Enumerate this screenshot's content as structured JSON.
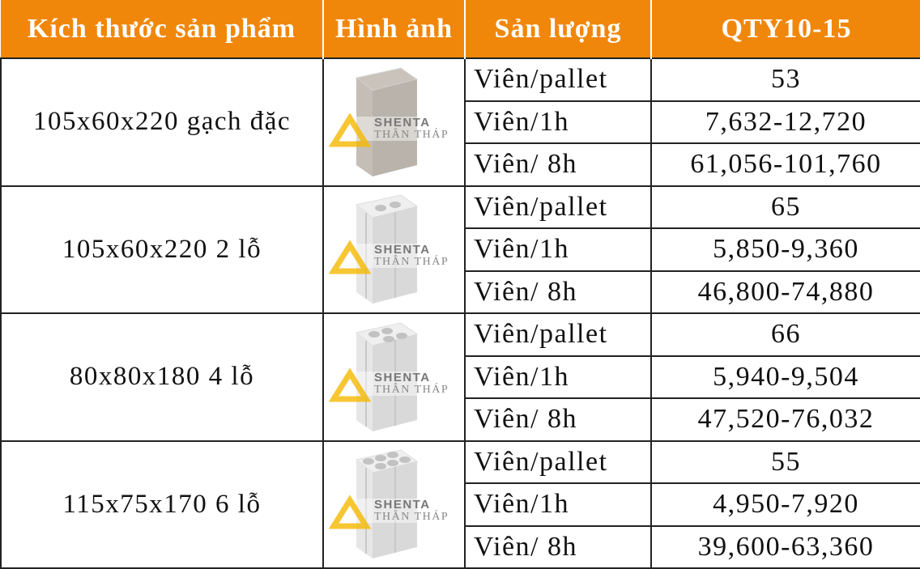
{
  "header": {
    "size": "Kích thước sản phẩm",
    "image": "Hình ảnh",
    "output": "Sản lượng",
    "model": "QTY10-15"
  },
  "watermark": {
    "line1": "SHENTA",
    "line2": "THÂN THÁP"
  },
  "colors": {
    "header_bg": "#f0870a",
    "watermark": "#f5b800"
  },
  "rows": [
    {
      "size": "105x60x220 gạch đặc",
      "holes": 0,
      "image_icon": "solid-brick-icon",
      "items": [
        {
          "label": "Viên/pallet",
          "value": "53"
        },
        {
          "label": "Viên/1h",
          "value": "7,632-12,720"
        },
        {
          "label": "Viên/ 8h",
          "value": "61,056-101,760"
        }
      ]
    },
    {
      "size": "105x60x220  2 lỗ",
      "holes": 2,
      "image_icon": "two-hole-brick-icon",
      "items": [
        {
          "label": "Viên/pallet",
          "value": "65"
        },
        {
          "label": "Viên/1h",
          "value": "5,850-9,360"
        },
        {
          "label": "Viên/ 8h",
          "value": "46,800-74,880"
        }
      ]
    },
    {
      "size": "80x80x180  4 lỗ",
      "holes": 4,
      "image_icon": "four-hole-brick-icon",
      "items": [
        {
          "label": "Viên/pallet",
          "value": "66"
        },
        {
          "label": "Viên/1h",
          "value": "5,940-9,504"
        },
        {
          "label": "Viên/ 8h",
          "value": "47,520-76,032"
        }
      ]
    },
    {
      "size": "115x75x170  6 lỗ",
      "holes": 6,
      "image_icon": "six-hole-brick-icon",
      "items": [
        {
          "label": "Viên/pallet",
          "value": "55"
        },
        {
          "label": "Viên/1h",
          "value": "4,950-7,920"
        },
        {
          "label": "Viên/ 8h",
          "value": "39,600-63,360"
        }
      ]
    }
  ]
}
